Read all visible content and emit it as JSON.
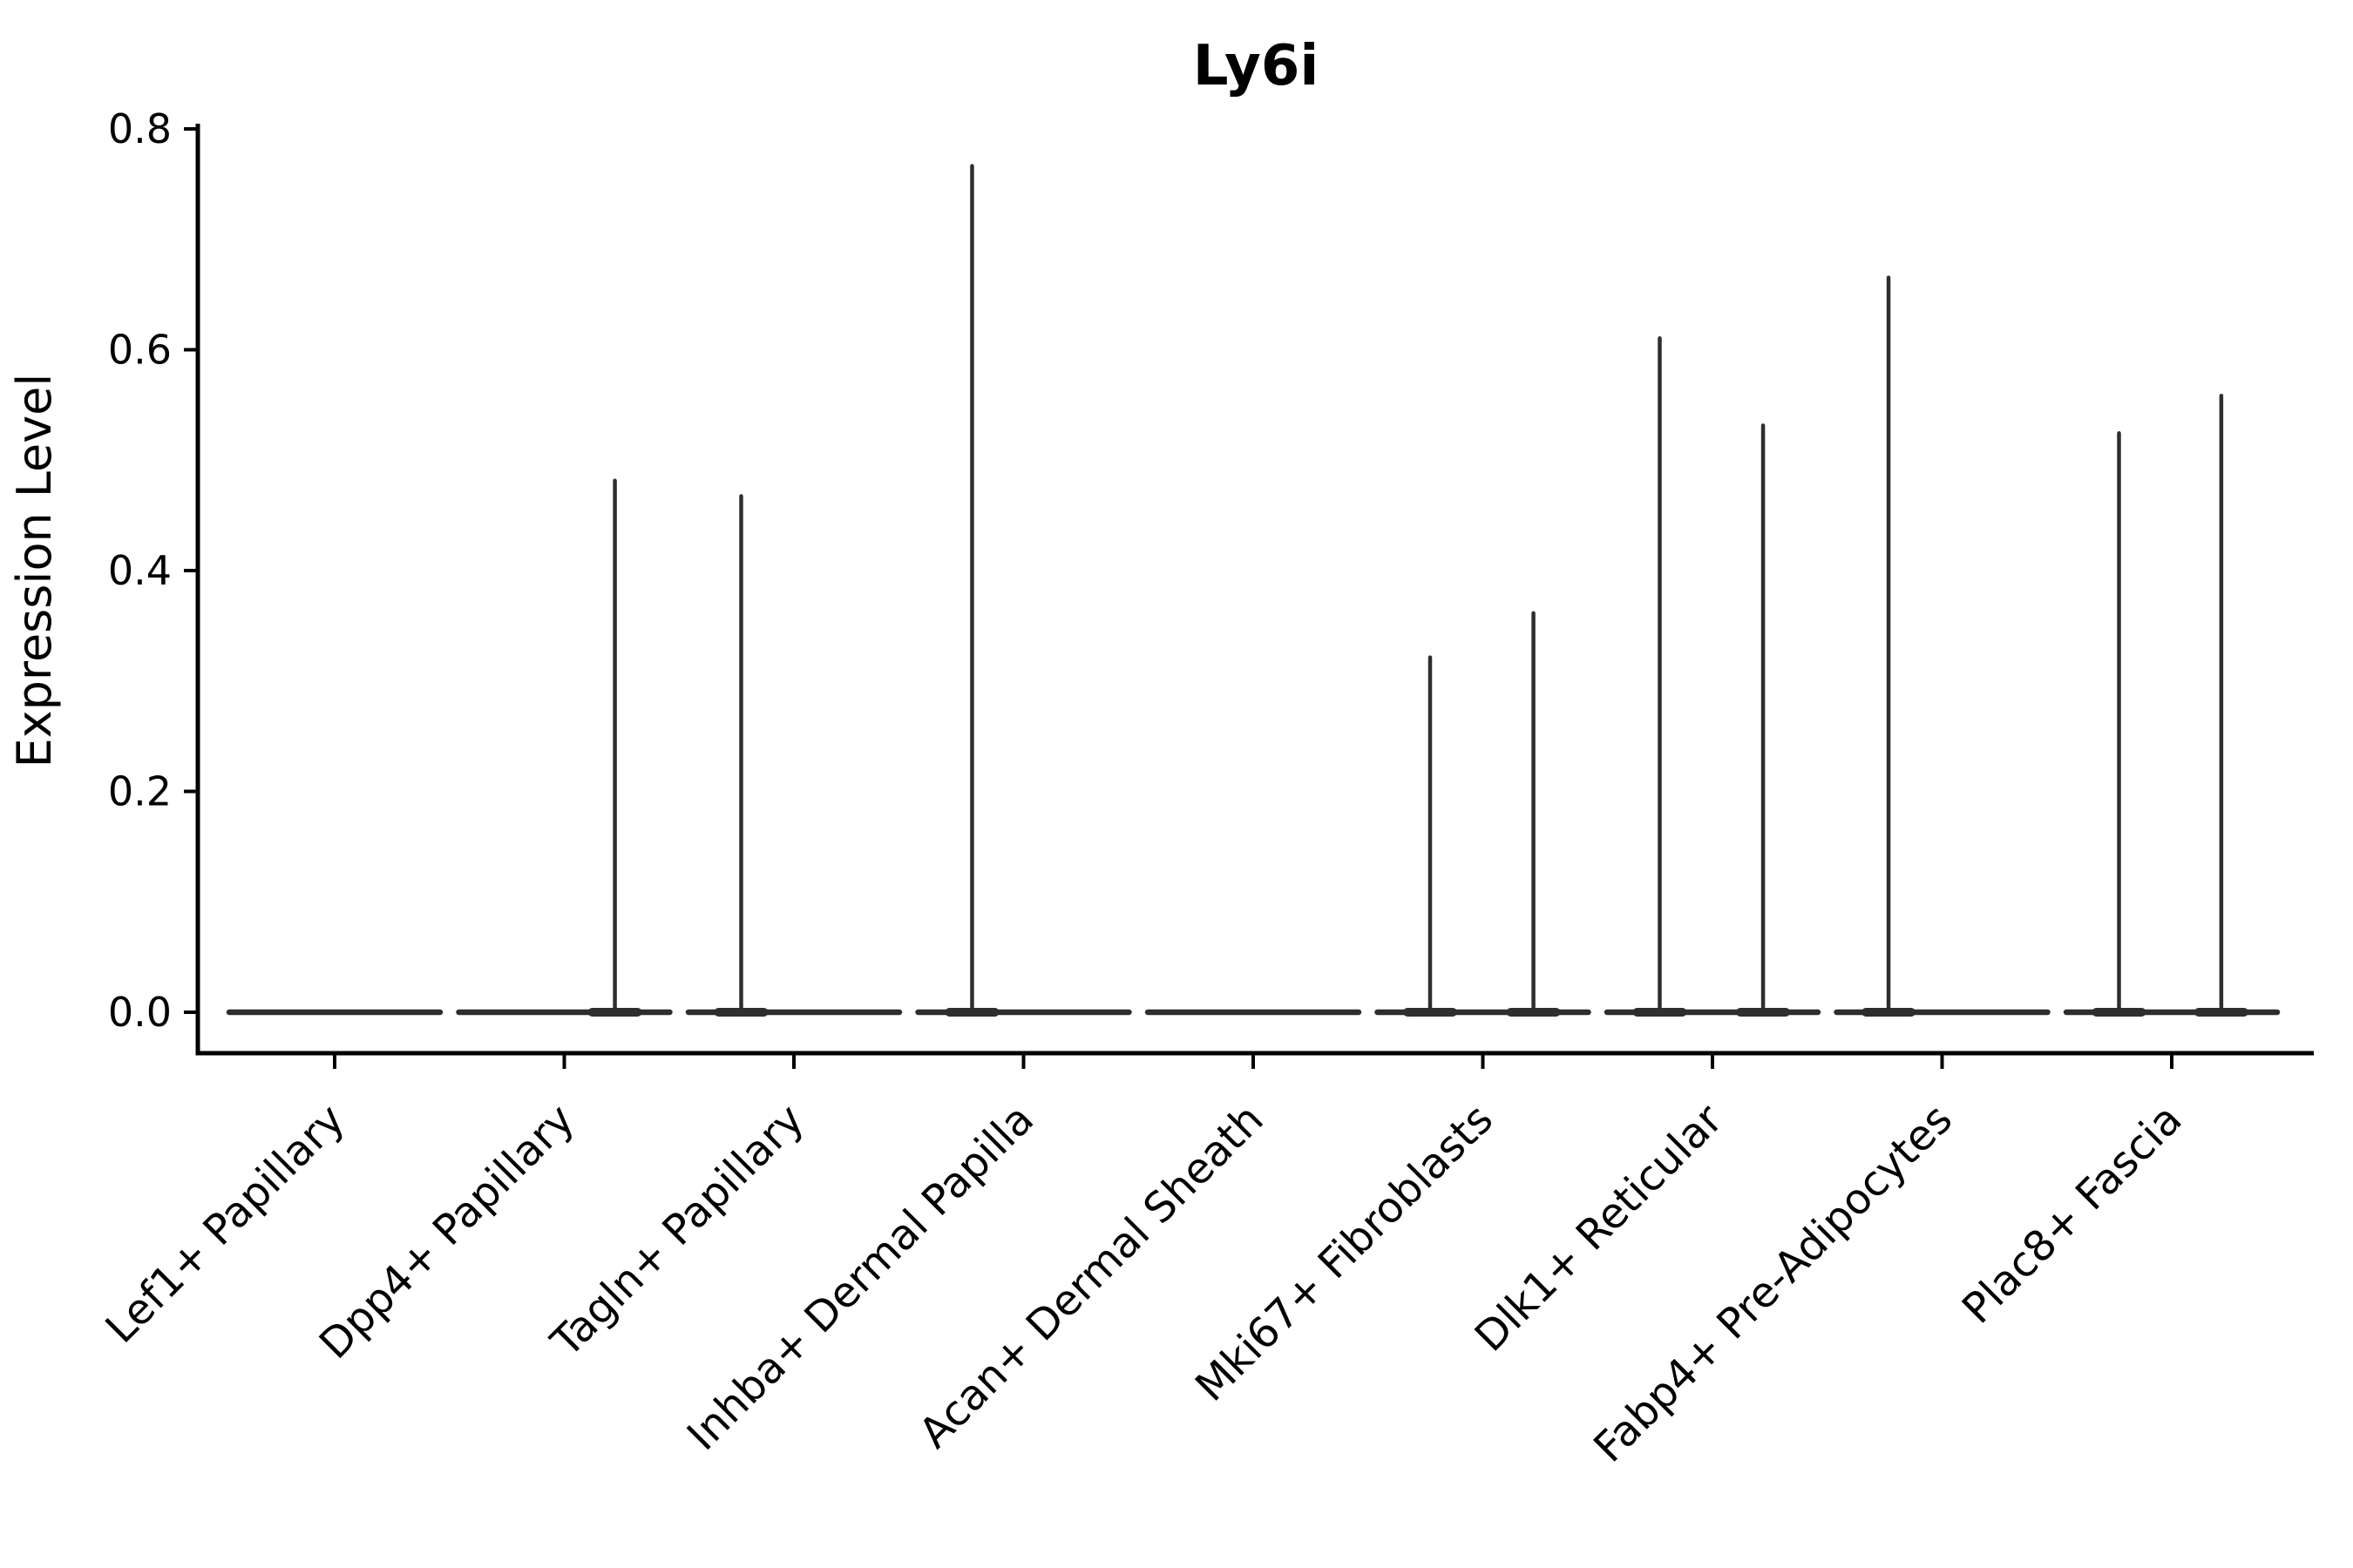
{
  "chart_data": {
    "type": "violin",
    "title": "Ly6i",
    "ylabel": "Expression Level",
    "xlabel": "",
    "ylim": [
      0.0,
      0.8
    ],
    "yticks": [
      0.0,
      0.2,
      0.4,
      0.6,
      0.8
    ],
    "ytick_labels": [
      "0.0",
      "0.2",
      "0.4",
      "0.6",
      "0.8"
    ],
    "grid": "off",
    "legend": "none",
    "colors": {
      "axis": "#000000",
      "violin_stroke": "#2e2e2e",
      "text": "#000000",
      "background": "#ffffff"
    },
    "categories": [
      "Lef1+ Papillary",
      "Dpp4+ Papillary",
      "Tagln+ Papillary",
      "Inhba+ Dermal Papilla",
      "Acan+ Dermal Sheath",
      "Mki67+ Fibroblasts",
      "Dlk1+ Reticular",
      "Fabp4+ Pre-Adipocytes",
      "Plac8+ Fascia"
    ],
    "violins": [
      {
        "label": "Lef1+ Papillary",
        "baseline_value": 0.0,
        "spikes": []
      },
      {
        "label": "Dpp4+ Papillary",
        "baseline_value": 0.0,
        "spikes": [
          {
            "x_frac": 0.74,
            "value": 0.483
          }
        ]
      },
      {
        "label": "Tagln+ Papillary",
        "baseline_value": 0.0,
        "spikes": [
          {
            "x_frac": 0.25,
            "value": 0.469
          }
        ]
      },
      {
        "label": "Inhba+ Dermal Papilla",
        "baseline_value": 0.0,
        "spikes": [
          {
            "x_frac": 0.256,
            "value": 0.768
          }
        ]
      },
      {
        "label": "Acan+ Dermal Sheath",
        "baseline_value": 0.0,
        "spikes": []
      },
      {
        "label": "Mki67+ Fibroblasts",
        "baseline_value": 0.0,
        "spikes": [
          {
            "x_frac": 0.25,
            "value": 0.323
          },
          {
            "x_frac": 0.74,
            "value": 0.363
          }
        ]
      },
      {
        "label": "Dlk1+ Reticular",
        "baseline_value": 0.0,
        "spikes": [
          {
            "x_frac": 0.25,
            "value": 0.612
          },
          {
            "x_frac": 0.74,
            "value": 0.533
          }
        ]
      },
      {
        "label": "Fabp4+ Pre-Adipocytes",
        "baseline_value": 0.0,
        "spikes": [
          {
            "x_frac": 0.246,
            "value": 0.667
          }
        ]
      },
      {
        "label": "Plac8+ Fascia",
        "baseline_value": 0.0,
        "spikes": [
          {
            "x_frac": 0.25,
            "value": 0.526
          },
          {
            "x_frac": 0.735,
            "value": 0.56
          }
        ]
      }
    ]
  }
}
